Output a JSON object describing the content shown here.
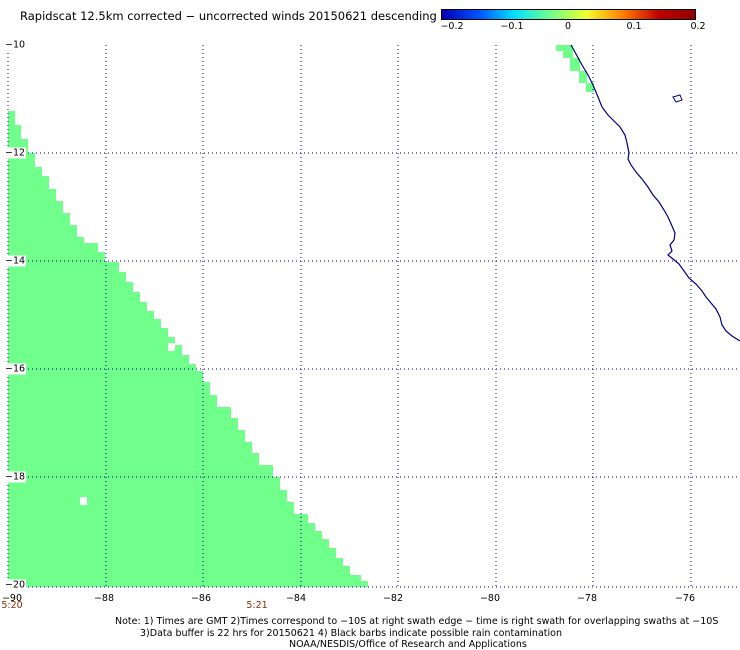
{
  "title": "Rapidscat 12.5km corrected − uncorrected winds 20150621 descending",
  "colorbar": {
    "ticks": [
      "−0.2",
      "−0.1",
      "0",
      "0.1",
      "0.2"
    ],
    "tick_values": [
      -0.2,
      -0.1,
      0,
      0.1,
      0.2
    ],
    "colors": [
      "#0000b4",
      "#0050ff",
      "#00e0ff",
      "#70ff8a",
      "#f0ff30",
      "#ff8000",
      "#c00000",
      "#900000"
    ]
  },
  "map": {
    "lon_range": [
      -90,
      -75
    ],
    "lat_range": [
      -20,
      -10
    ],
    "lat_ticks": [
      "−10",
      "−12",
      "−14",
      "−16",
      "−18",
      "−20"
    ],
    "lon_ticks": [
      "−90",
      "−88",
      "−86",
      "−84",
      "−82",
      "−80",
      "−78",
      "−76"
    ],
    "coast_color": "#000080",
    "swath_color": "#70ff8a",
    "grid": true,
    "grid_style": "dotted"
  },
  "times": {
    "left": "5:20",
    "mid": "5:21"
  },
  "notes": {
    "line1": "Note: 1) Times are GMT 2)Times correspond to −10S at right swath edge − time is right swath for overlapping swaths at −10S",
    "line2": "3)Data buffer is 22 hrs for 20150621 4) Black barbs indicate possible rain contamination",
    "line3": "NOAA/NESDIS/Office of Research and Applications"
  }
}
